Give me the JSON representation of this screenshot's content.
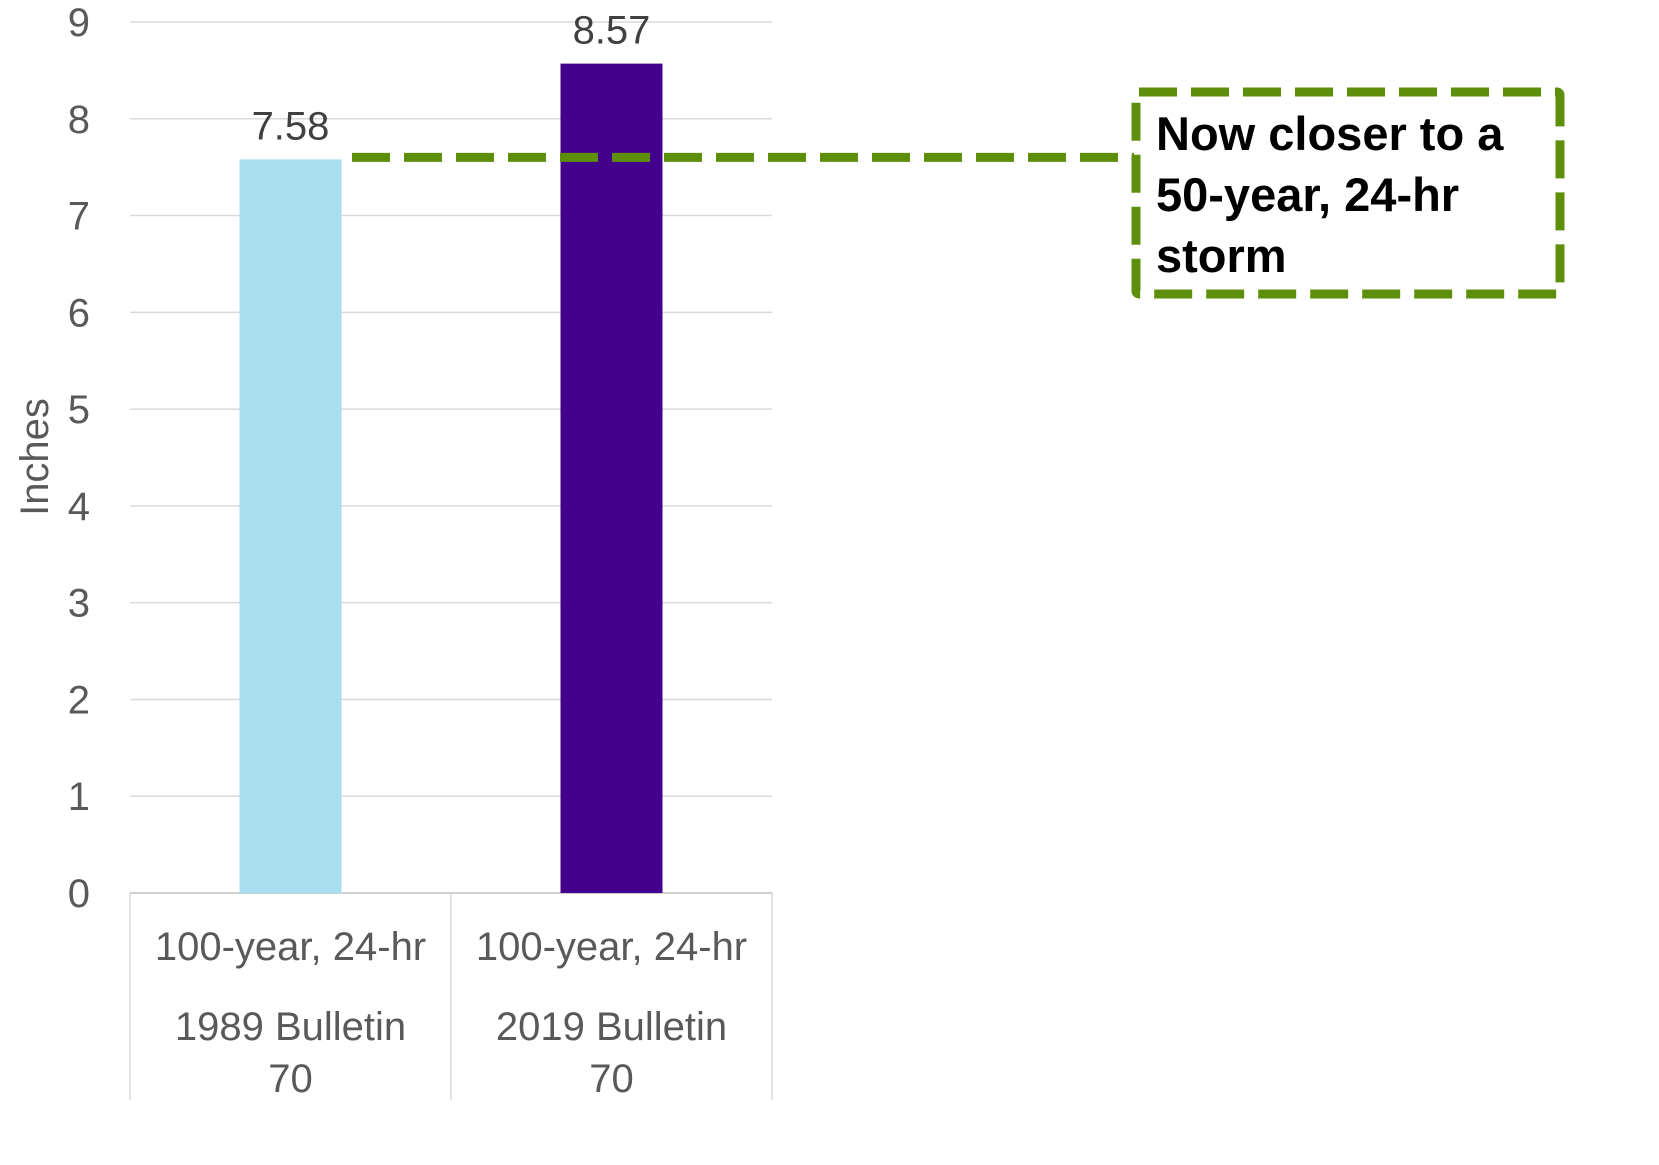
{
  "chart_data": {
    "type": "bar",
    "ylabel": "Inches",
    "ylim": [
      0,
      9
    ],
    "yticks": [
      0,
      1,
      2,
      3,
      4,
      5,
      6,
      7,
      8,
      9
    ],
    "grid": true,
    "categories": [
      {
        "level1": "100-year, 24-hr",
        "level2": "1989 Bulletin 70",
        "level2_lines": [
          "1989 Bulletin",
          "70"
        ]
      },
      {
        "level1": "100-year, 24-hr",
        "level2": "2019 Bulletin 70",
        "level2_lines": [
          "2019 Bulletin",
          "70"
        ]
      }
    ],
    "values": [
      7.58,
      8.57
    ],
    "data_labels": [
      "7.58",
      "8.57"
    ],
    "bar_colors": [
      "#a7dfef",
      "#43008c"
    ],
    "annotation": {
      "text_lines": [
        "Now closer to a",
        "50-year, 24-hr",
        "storm"
      ],
      "reference_value": 7.58,
      "color": "#5e8f0a"
    }
  }
}
